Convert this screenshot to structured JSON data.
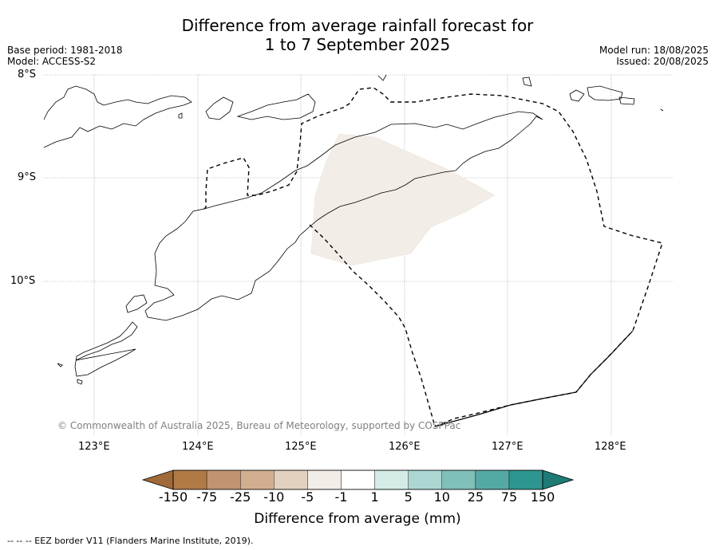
{
  "title": {
    "line1": "Difference from average rainfall forecast for",
    "line2": "1 to 7 September 2025"
  },
  "meta": {
    "base_period": "Base period: 1981-2018",
    "model": "Model: ACCESS-S2",
    "model_run": "Model run: 18/08/2025",
    "issued": "Issued: 20/08/2025"
  },
  "map": {
    "lat_labels": [
      "8°S",
      "9°S",
      "10°S"
    ],
    "lon_labels": [
      "123°E",
      "124°E",
      "125°E",
      "126°E",
      "127°E",
      "128°E"
    ],
    "credit": "© Commonwealth of Australia 2025, Bureau of Meteorology, supported by COSPPac",
    "anomaly_color": "#f2ede7",
    "anomaly_category": "-5 to -1"
  },
  "colorbar": {
    "title": "Difference from average (mm)",
    "ticks": [
      "-150",
      "-75",
      "-25",
      "-10",
      "-5",
      "-1",
      "1",
      "5",
      "10",
      "25",
      "75",
      "150"
    ],
    "colors": [
      "#a0693a",
      "#b07a46",
      "#c29370",
      "#d2ae90",
      "#e2d1bf",
      "#f2ede7",
      "#ffffff",
      "#d4ebe8",
      "#abd6d2",
      "#80bfba",
      "#55a9a4",
      "#2e9690",
      "#1f7a75"
    ]
  },
  "footnote": "--  --  -- EEZ border V11 (Flanders Marine Institute, 2019)."
}
